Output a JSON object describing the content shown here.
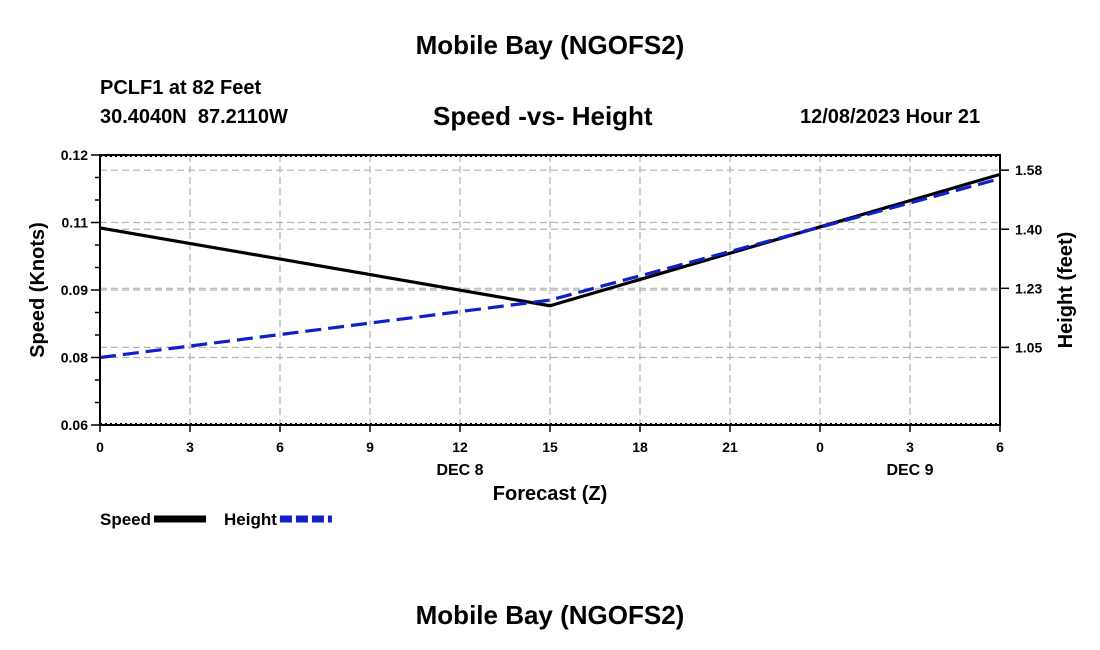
{
  "page": {
    "top_title": "Mobile Bay (NGOFS2)",
    "bottom_title": "Mobile Bay (NGOFS2)",
    "station_line": "PCLF1 at 82 Feet",
    "coords_line": "30.4040N  87.2110W",
    "timestamp": "12/08/2023 Hour 21"
  },
  "chart_data": {
    "type": "line",
    "title": "Speed -vs- Height",
    "xlabel": "Forecast (Z)",
    "ylabel": "Speed (Knots)",
    "y2label": "Height (feet)",
    "x_ticks": [
      "0",
      "3",
      "6",
      "9",
      "12",
      "15",
      "18",
      "21",
      "0",
      "3",
      "6"
    ],
    "x_hours": [
      0,
      3,
      6,
      9,
      12,
      15,
      18,
      21,
      24,
      27,
      30
    ],
    "date_labels": [
      {
        "label": "DEC 8",
        "hour": 12
      },
      {
        "label": "DEC 9",
        "hour": 27
      }
    ],
    "xlim": [
      0,
      30
    ],
    "ylim": [
      0.06,
      0.12
    ],
    "y_ticks": [
      "0.06",
      "0.08",
      "0.09",
      "0.11",
      "0.12"
    ],
    "y_tick_values": [
      0.06,
      0.075,
      0.09,
      0.105,
      0.12
    ],
    "y2lim": [
      0.82,
      1.62
    ],
    "y2_ticks": [
      "1.05",
      "1.23",
      "1.40",
      "1.58"
    ],
    "y2_tick_values": [
      1.05,
      1.225,
      1.4,
      1.575
    ],
    "grid": true,
    "legend_position": "bottom-left",
    "series": [
      {
        "name": "Speed",
        "axis": "left",
        "color": "#000000",
        "style": "solid",
        "x": [
          0,
          15,
          30
        ],
        "values": [
          0.1038,
          0.0865,
          0.1157
        ]
      },
      {
        "name": "Height",
        "axis": "right",
        "color": "#1020c8",
        "style": "dashed",
        "x": [
          0,
          15,
          30
        ],
        "values": [
          1.02,
          1.19,
          1.55
        ]
      }
    ]
  }
}
